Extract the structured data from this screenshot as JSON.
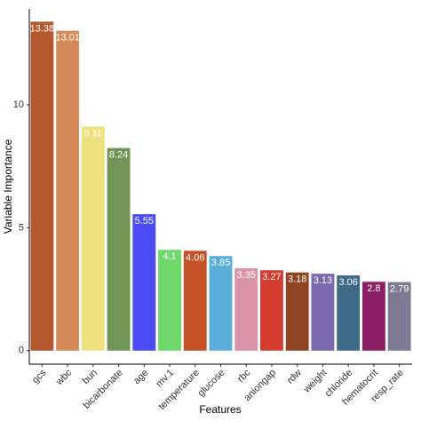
{
  "chart_data": {
    "type": "bar",
    "x_label": "Features",
    "y_label": "Variable Importance",
    "categories": [
      "gcs",
      "wbc",
      "bun",
      "bicarbonate",
      "age",
      "mv.1",
      "temperature",
      "glucose",
      "rbc",
      "aniongap",
      "rdw",
      "weight",
      "chloride",
      "hematocrit",
      "resp_rate"
    ],
    "values": [
      13.38,
      13.01,
      9.11,
      8.24,
      5.55,
      4.1,
      4.06,
      3.85,
      3.35,
      3.27,
      3.18,
      3.13,
      3.06,
      2.8,
      2.79
    ],
    "colors": [
      "#b5572f",
      "#d68a57",
      "#efe07e",
      "#6f9654",
      "#4c4cf6",
      "#6fd86b",
      "#c75228",
      "#5aaed8",
      "#d993a8",
      "#d33c2f",
      "#8f4423",
      "#7b69ae",
      "#3f6a87",
      "#8c1f63",
      "#7d7b93"
    ],
    "ylim": [
      -0.55,
      13.9
    ],
    "yticks": [
      0,
      5,
      10
    ],
    "grid": false
  }
}
